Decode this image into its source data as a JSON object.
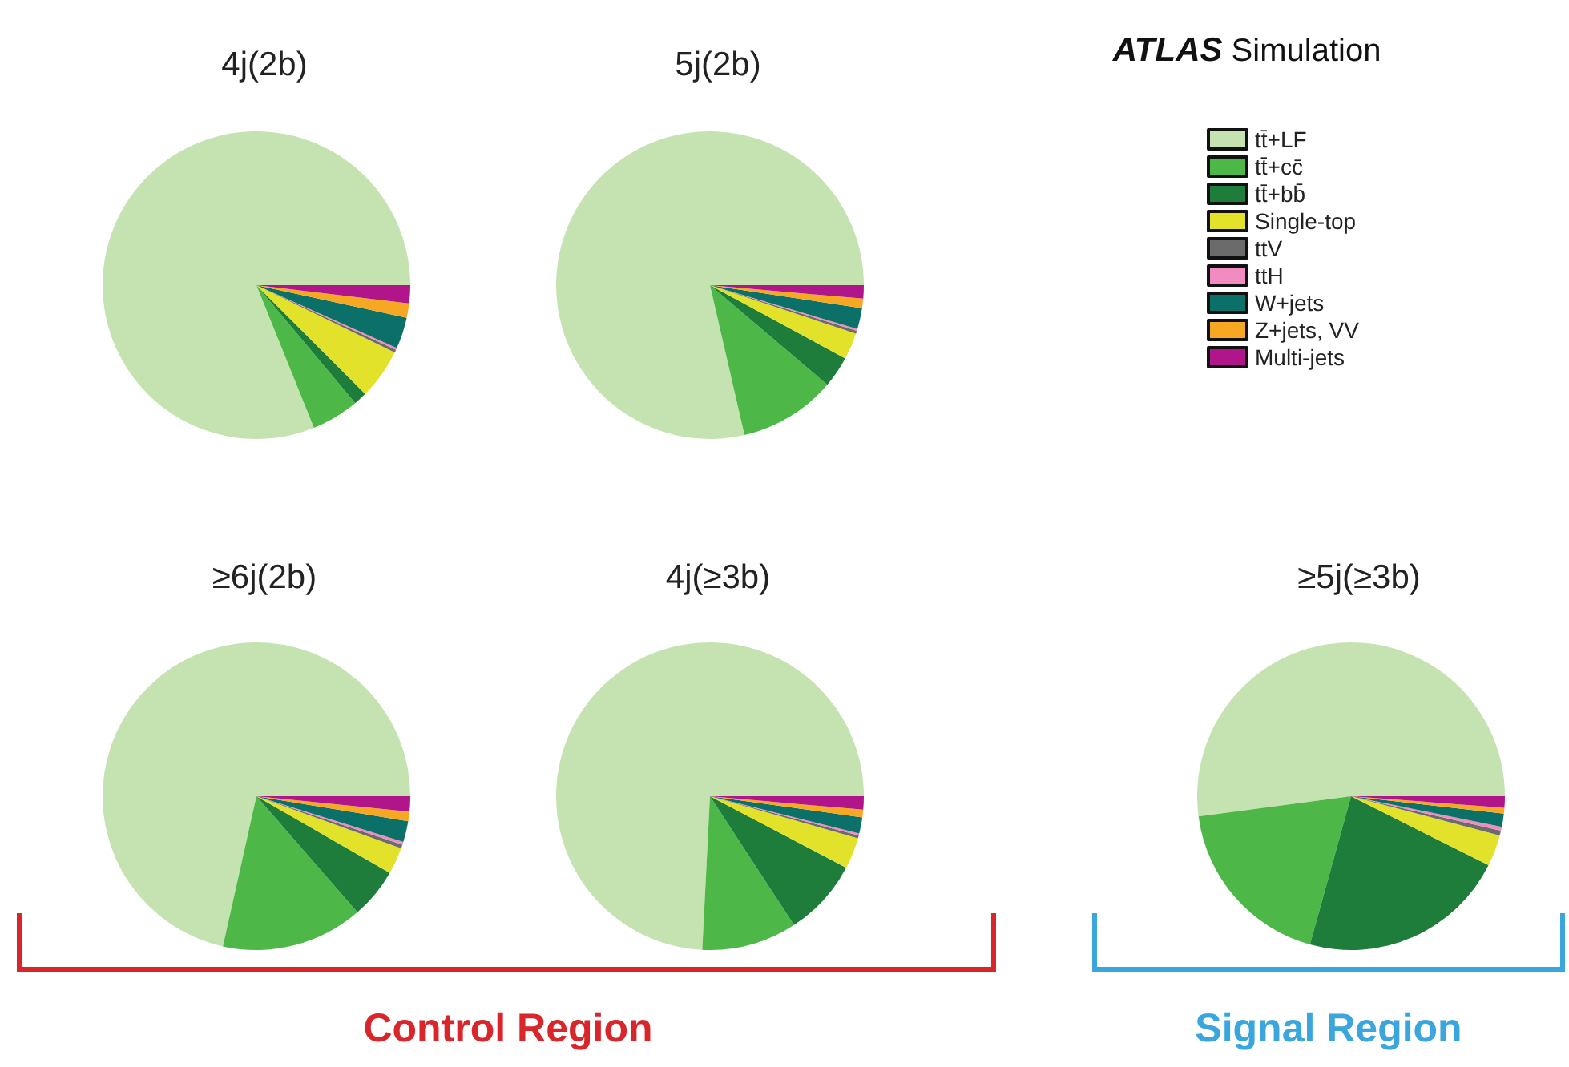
{
  "chart_data": [
    {
      "type": "pie",
      "title": "4j(2b)",
      "categories": [
        null,
        null,
        null,
        null,
        null,
        null,
        null,
        null,
        null
      ],
      "values": [
        81.1,
        5.0,
        1.4,
        5.3,
        0.3,
        0.2,
        3.3,
        1.5,
        1.9
      ],
      "colors": [
        "#c4e3b0",
        "#4db848",
        "#1e7d3a",
        "#e2e22a",
        "#6b6b6b",
        "#f08cc0",
        "#0b7168",
        "#f7a823",
        "#b0168a"
      ]
    },
    {
      "type": "pie",
      "title": "5j(2b)",
      "categories": [
        "tt̄+LF",
        "tt̄+cc̄",
        "tt̄+bb̄",
        "Single-top",
        "ttV",
        "ttH",
        "W+jets",
        "Z+jets, VV",
        "Multi-jets"
      ],
      "values": [
        78.6,
        10.2,
        3.3,
        2.8,
        0.3,
        0.2,
        2.2,
        1.0,
        1.4
      ],
      "colors": [
        "#c4e3b0",
        "#4db848",
        "#1e7d3a",
        "#e2e22a",
        "#6b6b6b",
        "#f08cc0",
        "#0b7168",
        "#f7a823",
        "#b0168a"
      ],
      "legend": "right",
      "annotations": [
        "ATLAS Simulation"
      ]
    },
    {
      "type": "pie",
      "title": "≥6j(2b)",
      "categories": [
        null,
        null,
        null,
        null,
        null,
        null,
        null,
        null,
        null
      ],
      "values": [
        71.5,
        14.9,
        5.3,
        2.8,
        0.4,
        0.3,
        2.2,
        1.0,
        1.6
      ],
      "colors": [
        "#c4e3b0",
        "#4db848",
        "#1e7d3a",
        "#e2e22a",
        "#6b6b6b",
        "#f08cc0",
        "#0b7168",
        "#f7a823",
        "#b0168a"
      ],
      "annotations": [
        "Control Region"
      ]
    },
    {
      "type": "pie",
      "title": "4j(≥3b)",
      "categories": [
        null,
        null,
        null,
        null,
        null,
        null,
        null,
        null,
        null
      ],
      "values": [
        74.2,
        10.0,
        8.1,
        3.3,
        0.3,
        0.2,
        1.7,
        0.8,
        1.4
      ],
      "colors": [
        "#c4e3b0",
        "#4db848",
        "#1e7d3a",
        "#e2e22a",
        "#6b6b6b",
        "#f08cc0",
        "#0b7168",
        "#f7a823",
        "#b0168a"
      ]
    },
    {
      "type": "pie",
      "title": "≥5j(≥3b)",
      "categories": [
        null,
        null,
        null,
        null,
        null,
        null,
        null,
        null,
        null
      ],
      "values": [
        52.1,
        18.6,
        21.9,
        3.3,
        0.5,
        0.4,
        1.4,
        0.6,
        1.2
      ],
      "colors": [
        "#c4e3b0",
        "#4db848",
        "#1e7d3a",
        "#e2e22a",
        "#6b6b6b",
        "#f08cc0",
        "#0b7168",
        "#f7a823",
        "#b0168a"
      ],
      "annotations": [
        "Signal Region"
      ]
    }
  ]
}
